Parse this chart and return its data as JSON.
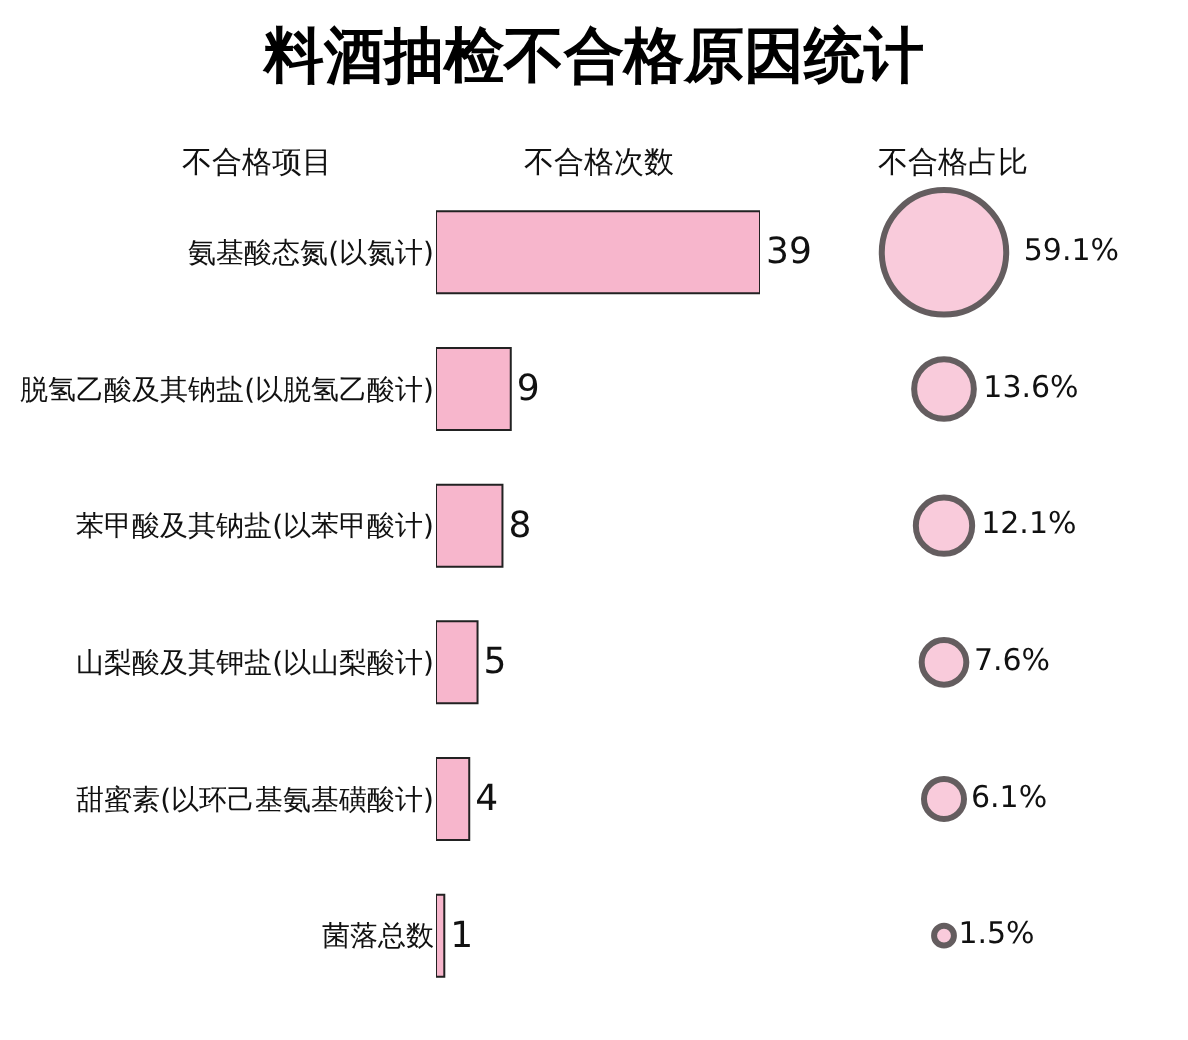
{
  "chart_data": [
    {
      "type": "bar",
      "title": "料酒抽检不合格原因统计",
      "orientation": "horizontal",
      "ylabel": "不合格项目",
      "xlabel": "不合格次数",
      "categories": [
        "氨基酸态氮(以氮计)",
        "脱氢乙酸及其钠盐(以脱氢乙酸计)",
        "苯甲酸及其钠盐(以苯甲酸计)",
        "山梨酸及其钾盐(以山梨酸计)",
        "甜蜜素(以环己基氨基磺酸计)",
        "菌落总数"
      ],
      "values": [
        39,
        9,
        8,
        5,
        4,
        1
      ],
      "color": "#f7b6cc",
      "xlim": [
        0,
        39
      ],
      "data_labels": true,
      "tick_labels": "y",
      "legend": false
    },
    {
      "type": "other",
      "xlabel": "不合格占比",
      "values": [
        59.1,
        13.6,
        12.1,
        7.6,
        6.1,
        1.5
      ],
      "value_labels": [
        "59.1%",
        "13.6%",
        "12.1%",
        "7.6%",
        "6.1%",
        "1.5%"
      ],
      "color": "#f7b6cc",
      "legend": false
    }
  ]
}
